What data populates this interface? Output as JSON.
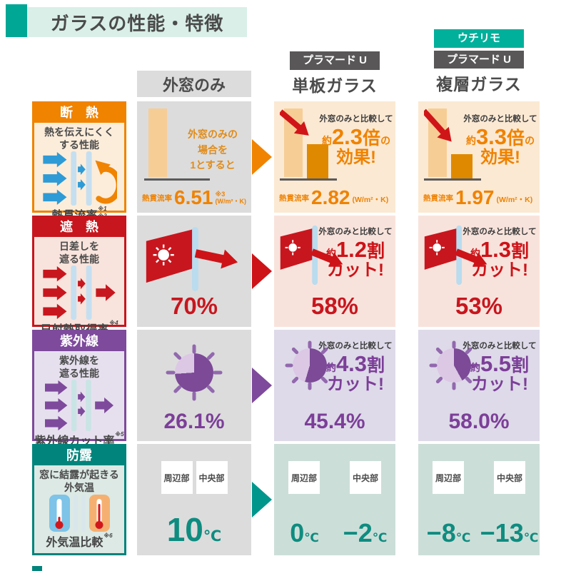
{
  "title": "ガラスの性能・特徴",
  "columns": {
    "baseline": {
      "label": "外窓のみ"
    },
    "single": {
      "badge": "プラマード U",
      "name": "単板ガラス"
    },
    "double": {
      "badge_top": "ウチリモ",
      "badge": "プラマード U",
      "name": "複層ガラス"
    }
  },
  "insulation": {
    "category": "断　熱",
    "desc1": "熱を伝えにくく",
    "desc2": "する性能",
    "metric": "熱貫流率",
    "note1": "※1",
    "note2": "※2",
    "baseline": {
      "cap1": "外窓のみの",
      "cap2": "場合を",
      "cap3": "1とすると",
      "metric_label": "熱貫流率",
      "value": "6.51",
      "note": "※3",
      "unit": "(W/m²・K)"
    },
    "single": {
      "compare": "外窓のみと比較して",
      "approx": "約",
      "factor": "2.3",
      "factor_unit": "倍",
      "suffix": "の",
      "effect": "効果!",
      "metric_label": "熱貫流率",
      "value": "2.82",
      "unit": "(W/m²・K)"
    },
    "double": {
      "compare": "外窓のみと比較して",
      "approx": "約",
      "factor": "3.3",
      "factor_unit": "倍",
      "suffix": "の",
      "effect": "効果!",
      "metric_label": "熱貫流率",
      "value": "1.97",
      "unit": "(W/m²・K)"
    }
  },
  "shading": {
    "category": "遮　熱",
    "desc1": "日差しを",
    "desc2": "遮る性能",
    "metric": "日射熱取得率",
    "note": "※4",
    "baseline": {
      "value": "70%"
    },
    "single": {
      "compare": "外窓のみと比較して",
      "approx": "約",
      "amount": "1.2",
      "unit": "割",
      "cut": "カット!",
      "value": "58%"
    },
    "double": {
      "compare": "外窓のみと比較して",
      "approx": "約",
      "amount": "1.3",
      "unit": "割",
      "cut": "カット!",
      "value": "53%"
    }
  },
  "uv": {
    "category": "紫外線",
    "desc1": "紫外線を",
    "desc2": "遮る性能",
    "metric": "紫外線カット率",
    "note": "※5",
    "baseline": {
      "value": "26.1%"
    },
    "single": {
      "compare": "外窓のみと比較して",
      "approx": "約",
      "amount": "4.3",
      "unit": "割",
      "cut": "カット!",
      "value": "45.4%"
    },
    "double": {
      "compare": "外窓のみと比較して",
      "approx": "約",
      "amount": "5.5",
      "unit": "割",
      "cut": "カット!",
      "value": "58.0%"
    }
  },
  "condensation": {
    "category": "防露",
    "desc1": "窓に結露が起きる",
    "desc2": "外気温",
    "metric": "外気温比較",
    "note": "※6",
    "label_edge": "周辺部",
    "label_center": "中央部",
    "baseline": {
      "value": "10",
      "unit": "℃"
    },
    "single": {
      "edge": "0",
      "center": "−2",
      "unit": "℃"
    },
    "double": {
      "edge": "−8",
      "center": "−13",
      "unit": "℃"
    }
  },
  "colors": {
    "accent_teal": "#00A795",
    "badge_teal": "#00B09B",
    "badge_dark": "#595757",
    "insulation_orange": "#F08300",
    "shading_red": "#C7161D",
    "uv_purple": "#7E4A9C",
    "condensation_teal": "#00847C"
  }
}
